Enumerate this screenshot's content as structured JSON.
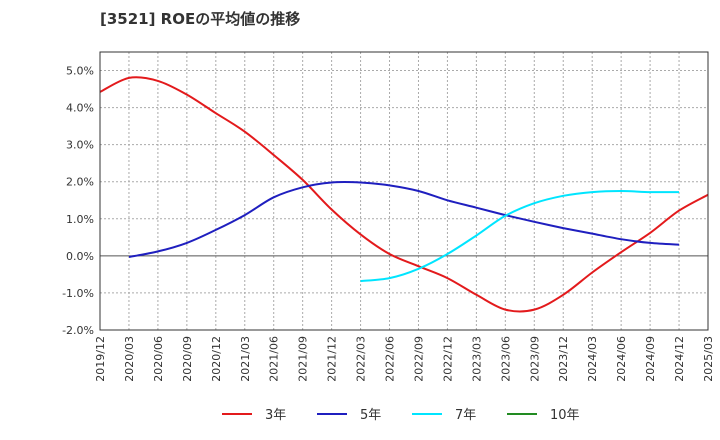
{
  "chart_data": {
    "type": "line",
    "title": "[3521]  ROEの平均値の推移",
    "xlabel": "",
    "ylabel": "",
    "ylim": [
      -2.0,
      5.5
    ],
    "grid": true,
    "legend_position": "bottom",
    "y_ticks": [
      -2.0,
      -1.0,
      0.0,
      1.0,
      2.0,
      3.0,
      4.0,
      5.0
    ],
    "y_tick_labels": [
      "-2.0%",
      "-1.0%",
      "0.0%",
      "1.0%",
      "2.0%",
      "3.0%",
      "4.0%",
      "5.0%"
    ],
    "x_tick_labels": [
      "2019/12",
      "2020/03",
      "2020/06",
      "2020/09",
      "2020/12",
      "2021/03",
      "2021/06",
      "2021/09",
      "2021/12",
      "2022/03",
      "2022/06",
      "2022/09",
      "2022/12",
      "2023/03",
      "2023/06",
      "2023/09",
      "2023/12",
      "2024/03",
      "2024/06",
      "2024/09",
      "2024/12",
      "2025/03"
    ],
    "series": [
      {
        "name": "3年",
        "color": "#e31a1c",
        "values": [
          4.42,
          4.8,
          4.72,
          4.35,
          3.85,
          3.35,
          2.72,
          2.05,
          1.25,
          0.58,
          0.05,
          -0.28,
          -0.6,
          -1.05,
          -1.45,
          -1.45,
          -1.05,
          -0.45,
          0.1,
          0.62,
          1.22,
          1.65
        ]
      },
      {
        "name": "5年",
        "color": "#1f1fbf",
        "values": [
          null,
          -0.03,
          0.12,
          0.35,
          0.7,
          1.1,
          1.58,
          1.85,
          1.98,
          1.98,
          1.9,
          1.75,
          1.5,
          1.3,
          1.1,
          0.92,
          0.75,
          0.6,
          0.45,
          0.35,
          0.3,
          null
        ]
      },
      {
        "name": "7年",
        "color": "#00e5ff",
        "values": [
          null,
          null,
          null,
          null,
          null,
          null,
          null,
          null,
          null,
          -0.68,
          -0.6,
          -0.35,
          0.05,
          0.55,
          1.08,
          1.42,
          1.62,
          1.72,
          1.75,
          1.72,
          1.72,
          null
        ]
      },
      {
        "name": "10年",
        "color": "#228b22",
        "values": []
      }
    ]
  }
}
